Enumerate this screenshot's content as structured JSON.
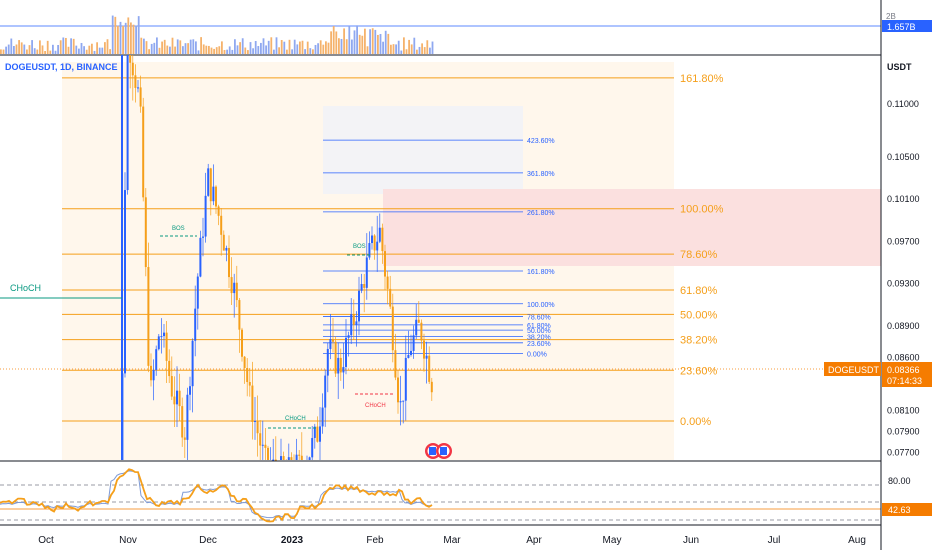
{
  "chart_data": {
    "type": "candlestick",
    "symbol_label": "DOGEUSDT, 1D, BINANCE",
    "currency": "USDT",
    "price_axis": {
      "ylim": [
        0.0763,
        0.114
      ],
      "ticks": [
        "0.11000",
        "0.10500",
        "0.10100",
        "0.09700",
        "0.09300",
        "0.08900",
        "0.08600",
        "0.08100",
        "0.07900",
        "0.07700"
      ],
      "tick_values": [
        0.11,
        0.105,
        0.101,
        0.097,
        0.093,
        0.089,
        0.086,
        0.081,
        0.079,
        0.077
      ]
    },
    "time_axis": {
      "labels": [
        "Oct",
        "Nov",
        "Dec",
        "2023",
        "Feb",
        "Mar",
        "Apr",
        "May",
        "Jun",
        "Jul",
        "Aug"
      ],
      "bold": [
        "2023"
      ]
    },
    "last_price": {
      "label": "DOGEUSDT",
      "value": "0.08366",
      "countdown": "07:14:33"
    },
    "volume": {
      "label": "1.657B",
      "top_label": "2B"
    },
    "rsi": {
      "ticks": [
        "80.00"
      ],
      "value": "42.63"
    },
    "fib_large": {
      "levels": [
        {
          "label": "161.80%",
          "value": 0.1125
        },
        {
          "label": "100.00%",
          "value": 0.1001
        },
        {
          "label": "78.60%",
          "value": 0.0958
        },
        {
          "label": "61.80%",
          "value": 0.0924
        },
        {
          "label": "50.00%",
          "value": 0.0901
        },
        {
          "label": "38.20%",
          "value": 0.0877
        },
        {
          "label": "23.60%",
          "value": 0.0848
        },
        {
          "label": "0.00%",
          "value": 0.08
        }
      ]
    },
    "fib_small": {
      "levels": [
        {
          "label": "423.60%",
          "value": 0.1066
        },
        {
          "label": "361.80%",
          "value": 0.1035
        },
        {
          "label": "261.80%",
          "value": 0.0998
        },
        {
          "label": "161.80%",
          "value": 0.0942
        },
        {
          "label": "100.00%",
          "value": 0.0911
        },
        {
          "label": "78.60%",
          "value": 0.0899
        },
        {
          "label": "61.80%",
          "value": 0.0891
        },
        {
          "label": "50.00%",
          "value": 0.0886
        },
        {
          "label": "38.20%",
          "value": 0.088
        },
        {
          "label": "23.60%",
          "value": 0.0874
        },
        {
          "label": "0.00%",
          "value": 0.0864
        }
      ]
    },
    "annotations": [
      "CHoCH",
      "BOS",
      "CHoCH",
      "BOS",
      "CHoCH"
    ]
  }
}
